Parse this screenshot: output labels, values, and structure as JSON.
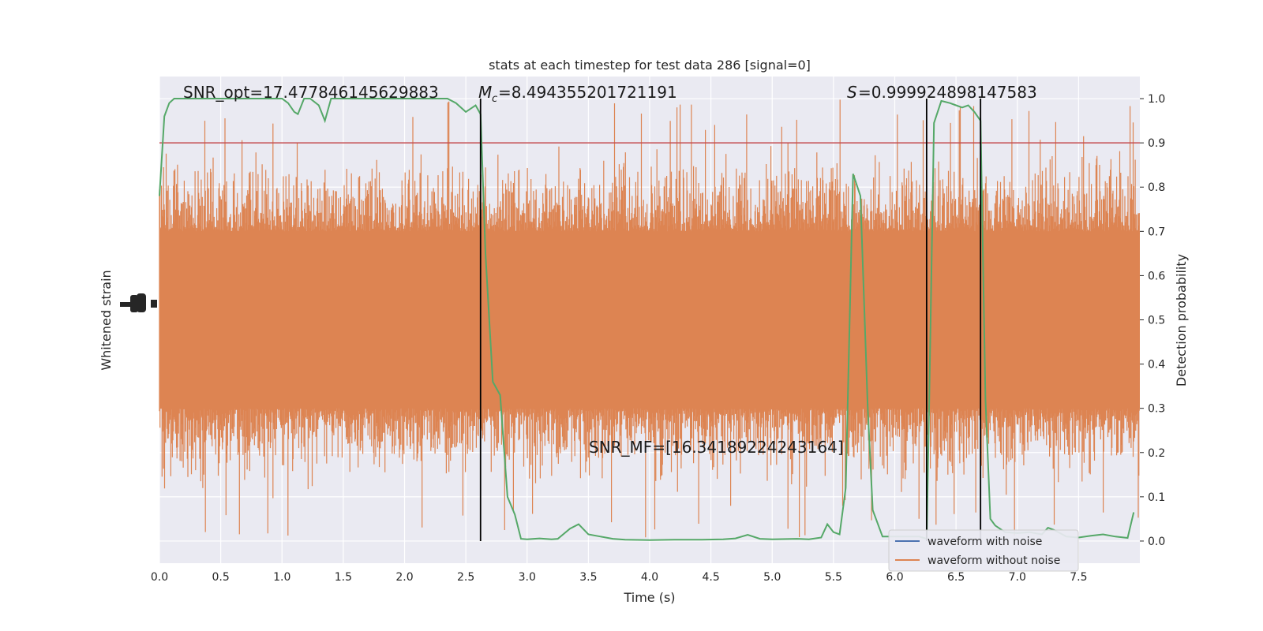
{
  "chart_data": {
    "type": "line",
    "title": "stats at each timestep for test data 286 [signal=0]",
    "xlabel": "Time (s)",
    "ylabel_left": "Whitened strain",
    "ylabel_right": "Detection probability",
    "xlim": [
      0.0,
      8.0
    ],
    "ylim_right": [
      -0.05,
      1.05
    ],
    "x_ticks": [
      "0.0",
      "0.5",
      "1.0",
      "1.5",
      "2.0",
      "2.5",
      "3.0",
      "3.5",
      "4.0",
      "4.5",
      "5.0",
      "5.5",
      "6.0",
      "6.5",
      "7.0",
      "7.5"
    ],
    "y_ticks_right": [
      "0.0",
      "0.1",
      "0.2",
      "0.3",
      "0.4",
      "0.5",
      "0.6",
      "0.7",
      "0.8",
      "0.9",
      "1.0"
    ],
    "grid": true,
    "legend": {
      "placement": "lower-right",
      "entries": [
        {
          "label": "waveform with noise",
          "color": "#4c72b0"
        },
        {
          "label": "waveform without noise",
          "color": "#dd8452"
        }
      ]
    },
    "annotations": {
      "snr_opt": "SNR_opt=17.477846145629883",
      "mc": "=8.494355201721191",
      "s": "=0.999924898147583",
      "snr_mf": "SNR_MF=[16.34189224243164]"
    },
    "threshold": {
      "y": 0.9,
      "color": "#c44e52"
    },
    "vertical_lines_x": [
      2.62,
      6.26,
      6.7
    ],
    "noise_band": {
      "x_range": [
        0.0,
        8.0
      ],
      "core_low": 0.3,
      "core_high": 0.7,
      "spike_min": 0.0,
      "spike_max": 1.0,
      "color": "#dd8452"
    },
    "probability_series": {
      "name": "",
      "color": "#55a868",
      "x": [
        0.0,
        0.04,
        0.08,
        0.12,
        0.16,
        0.2,
        0.3,
        0.4,
        0.5,
        0.6,
        0.7,
        0.8,
        0.9,
        1.0,
        1.05,
        1.1,
        1.13,
        1.18,
        1.23,
        1.3,
        1.35,
        1.4,
        1.45,
        1.5,
        1.6,
        1.8,
        2.0,
        2.2,
        2.35,
        2.42,
        2.5,
        2.58,
        2.62,
        2.66,
        2.72,
        2.78,
        2.84,
        2.9,
        2.95,
        3.0,
        3.1,
        3.2,
        3.25,
        3.35,
        3.42,
        3.5,
        3.6,
        3.7,
        3.8,
        4.0,
        4.2,
        4.4,
        4.6,
        4.7,
        4.8,
        4.9,
        5.0,
        5.2,
        5.3,
        5.4,
        5.45,
        5.5,
        5.55,
        5.6,
        5.66,
        5.72,
        5.78,
        5.82,
        5.9,
        6.0,
        6.1,
        6.2,
        6.26,
        6.28,
        6.32,
        6.38,
        6.45,
        6.5,
        6.55,
        6.6,
        6.65,
        6.7,
        6.74,
        6.78,
        6.82,
        6.9,
        7.0,
        7.1,
        7.2,
        7.25,
        7.3,
        7.4,
        7.5,
        7.6,
        7.7,
        7.8,
        7.9,
        7.95
      ],
      "y": [
        0.78,
        0.96,
        0.99,
        1.0,
        1.0,
        1.0,
        1.0,
        1.0,
        1.0,
        1.0,
        1.0,
        1.0,
        1.0,
        1.0,
        0.99,
        0.97,
        0.965,
        1.0,
        1.0,
        0.985,
        0.95,
        1.0,
        1.0,
        1.0,
        1.0,
        1.0,
        1.0,
        1.0,
        1.0,
        0.99,
        0.97,
        0.985,
        0.965,
        0.65,
        0.36,
        0.33,
        0.1,
        0.06,
        0.005,
        0.004,
        0.006,
        0.004,
        0.005,
        0.028,
        0.038,
        0.015,
        0.01,
        0.005,
        0.003,
        0.002,
        0.003,
        0.003,
        0.004,
        0.006,
        0.014,
        0.005,
        0.004,
        0.005,
        0.004,
        0.008,
        0.038,
        0.02,
        0.015,
        0.12,
        0.83,
        0.78,
        0.3,
        0.07,
        0.01,
        0.01,
        0.01,
        0.01,
        0.005,
        0.3,
        0.945,
        0.995,
        0.99,
        0.985,
        0.98,
        0.985,
        0.97,
        0.95,
        0.32,
        0.05,
        0.035,
        0.02,
        0.018,
        0.02,
        0.015,
        0.03,
        0.025,
        0.01,
        0.008,
        0.012,
        0.015,
        0.01,
        0.007,
        0.065
      ]
    }
  }
}
